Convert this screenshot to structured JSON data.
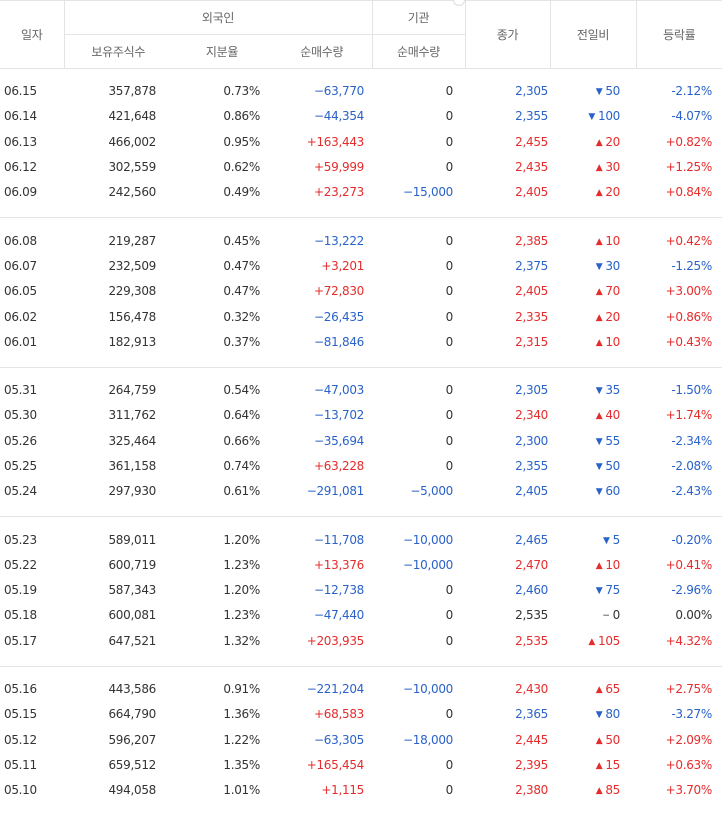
{
  "header": {
    "date": "일자",
    "foreign": "외국인",
    "institution": "기관",
    "close": "종가",
    "change": "전일비",
    "rate": "등락률",
    "holdings": "보유주식수",
    "share": "지분율",
    "foreign_net": "순매수량",
    "inst_net": "순매수량"
  },
  "groups": [
    [
      {
        "date": "06.15",
        "holdings": "357,878",
        "share": "0.73%",
        "foreign_net": "−63,770",
        "fdir": "down",
        "inst_net": "0",
        "idir": "flat",
        "close": "2,305",
        "cdir": "down",
        "change": "50",
        "chdir": "down",
        "rate": "-2.12%",
        "rdir": "down"
      },
      {
        "date": "06.14",
        "holdings": "421,648",
        "share": "0.86%",
        "foreign_net": "−44,354",
        "fdir": "down",
        "inst_net": "0",
        "idir": "flat",
        "close": "2,355",
        "cdir": "down",
        "change": "100",
        "chdir": "down",
        "rate": "-4.07%",
        "rdir": "down"
      },
      {
        "date": "06.13",
        "holdings": "466,002",
        "share": "0.95%",
        "foreign_net": "+163,443",
        "fdir": "up",
        "inst_net": "0",
        "idir": "flat",
        "close": "2,455",
        "cdir": "up",
        "change": "20",
        "chdir": "up",
        "rate": "+0.82%",
        "rdir": "up"
      },
      {
        "date": "06.12",
        "holdings": "302,559",
        "share": "0.62%",
        "foreign_net": "+59,999",
        "fdir": "up",
        "inst_net": "0",
        "idir": "flat",
        "close": "2,435",
        "cdir": "up",
        "change": "30",
        "chdir": "up",
        "rate": "+1.25%",
        "rdir": "up"
      },
      {
        "date": "06.09",
        "holdings": "242,560",
        "share": "0.49%",
        "foreign_net": "+23,273",
        "fdir": "up",
        "inst_net": "−15,000",
        "idir": "down",
        "close": "2,405",
        "cdir": "up",
        "change": "20",
        "chdir": "up",
        "rate": "+0.84%",
        "rdir": "up"
      }
    ],
    [
      {
        "date": "06.08",
        "holdings": "219,287",
        "share": "0.45%",
        "foreign_net": "−13,222",
        "fdir": "down",
        "inst_net": "0",
        "idir": "flat",
        "close": "2,385",
        "cdir": "up",
        "change": "10",
        "chdir": "up",
        "rate": "+0.42%",
        "rdir": "up"
      },
      {
        "date": "06.07",
        "holdings": "232,509",
        "share": "0.47%",
        "foreign_net": "+3,201",
        "fdir": "up",
        "inst_net": "0",
        "idir": "flat",
        "close": "2,375",
        "cdir": "down",
        "change": "30",
        "chdir": "down",
        "rate": "-1.25%",
        "rdir": "down"
      },
      {
        "date": "06.05",
        "holdings": "229,308",
        "share": "0.47%",
        "foreign_net": "+72,830",
        "fdir": "up",
        "inst_net": "0",
        "idir": "flat",
        "close": "2,405",
        "cdir": "up",
        "change": "70",
        "chdir": "up",
        "rate": "+3.00%",
        "rdir": "up"
      },
      {
        "date": "06.02",
        "holdings": "156,478",
        "share": "0.32%",
        "foreign_net": "−26,435",
        "fdir": "down",
        "inst_net": "0",
        "idir": "flat",
        "close": "2,335",
        "cdir": "up",
        "change": "20",
        "chdir": "up",
        "rate": "+0.86%",
        "rdir": "up"
      },
      {
        "date": "06.01",
        "holdings": "182,913",
        "share": "0.37%",
        "foreign_net": "−81,846",
        "fdir": "down",
        "inst_net": "0",
        "idir": "flat",
        "close": "2,315",
        "cdir": "up",
        "change": "10",
        "chdir": "up",
        "rate": "+0.43%",
        "rdir": "up"
      }
    ],
    [
      {
        "date": "05.31",
        "holdings": "264,759",
        "share": "0.54%",
        "foreign_net": "−47,003",
        "fdir": "down",
        "inst_net": "0",
        "idir": "flat",
        "close": "2,305",
        "cdir": "down",
        "change": "35",
        "chdir": "down",
        "rate": "-1.50%",
        "rdir": "down"
      },
      {
        "date": "05.30",
        "holdings": "311,762",
        "share": "0.64%",
        "foreign_net": "−13,702",
        "fdir": "down",
        "inst_net": "0",
        "idir": "flat",
        "close": "2,340",
        "cdir": "up",
        "change": "40",
        "chdir": "up",
        "rate": "+1.74%",
        "rdir": "up"
      },
      {
        "date": "05.26",
        "holdings": "325,464",
        "share": "0.66%",
        "foreign_net": "−35,694",
        "fdir": "down",
        "inst_net": "0",
        "idir": "flat",
        "close": "2,300",
        "cdir": "down",
        "change": "55",
        "chdir": "down",
        "rate": "-2.34%",
        "rdir": "down"
      },
      {
        "date": "05.25",
        "holdings": "361,158",
        "share": "0.74%",
        "foreign_net": "+63,228",
        "fdir": "up",
        "inst_net": "0",
        "idir": "flat",
        "close": "2,355",
        "cdir": "down",
        "change": "50",
        "chdir": "down",
        "rate": "-2.08%",
        "rdir": "down"
      },
      {
        "date": "05.24",
        "holdings": "297,930",
        "share": "0.61%",
        "foreign_net": "−291,081",
        "fdir": "down",
        "inst_net": "−5,000",
        "idir": "down",
        "close": "2,405",
        "cdir": "down",
        "change": "60",
        "chdir": "down",
        "rate": "-2.43%",
        "rdir": "down"
      }
    ],
    [
      {
        "date": "05.23",
        "holdings": "589,011",
        "share": "1.20%",
        "foreign_net": "−11,708",
        "fdir": "down",
        "inst_net": "−10,000",
        "idir": "down",
        "close": "2,465",
        "cdir": "down",
        "change": "5",
        "chdir": "down",
        "rate": "-0.20%",
        "rdir": "down"
      },
      {
        "date": "05.22",
        "holdings": "600,719",
        "share": "1.23%",
        "foreign_net": "+13,376",
        "fdir": "up",
        "inst_net": "−10,000",
        "idir": "down",
        "close": "2,470",
        "cdir": "up",
        "change": "10",
        "chdir": "up",
        "rate": "+0.41%",
        "rdir": "up"
      },
      {
        "date": "05.19",
        "holdings": "587,343",
        "share": "1.20%",
        "foreign_net": "−12,738",
        "fdir": "down",
        "inst_net": "0",
        "idir": "flat",
        "close": "2,460",
        "cdir": "down",
        "change": "75",
        "chdir": "down",
        "rate": "-2.96%",
        "rdir": "down"
      },
      {
        "date": "05.18",
        "holdings": "600,081",
        "share": "1.23%",
        "foreign_net": "−47,440",
        "fdir": "down",
        "inst_net": "0",
        "idir": "flat",
        "close": "2,535",
        "cdir": "flat",
        "change": "0",
        "chdir": "flat",
        "rate": "0.00%",
        "rdir": "flat"
      },
      {
        "date": "05.17",
        "holdings": "647,521",
        "share": "1.32%",
        "foreign_net": "+203,935",
        "fdir": "up",
        "inst_net": "0",
        "idir": "flat",
        "close": "2,535",
        "cdir": "up",
        "change": "105",
        "chdir": "up",
        "rate": "+4.32%",
        "rdir": "up"
      }
    ],
    [
      {
        "date": "05.16",
        "holdings": "443,586",
        "share": "0.91%",
        "foreign_net": "−221,204",
        "fdir": "down",
        "inst_net": "−10,000",
        "idir": "down",
        "close": "2,430",
        "cdir": "up",
        "change": "65",
        "chdir": "up",
        "rate": "+2.75%",
        "rdir": "up"
      },
      {
        "date": "05.15",
        "holdings": "664,790",
        "share": "1.36%",
        "foreign_net": "+68,583",
        "fdir": "up",
        "inst_net": "0",
        "idir": "flat",
        "close": "2,365",
        "cdir": "down",
        "change": "80",
        "chdir": "down",
        "rate": "-3.27%",
        "rdir": "down"
      },
      {
        "date": "05.12",
        "holdings": "596,207",
        "share": "1.22%",
        "foreign_net": "−63,305",
        "fdir": "down",
        "inst_net": "−18,000",
        "idir": "down",
        "close": "2,445",
        "cdir": "up",
        "change": "50",
        "chdir": "up",
        "rate": "+2.09%",
        "rdir": "up"
      },
      {
        "date": "05.11",
        "holdings": "659,512",
        "share": "1.35%",
        "foreign_net": "+165,454",
        "fdir": "up",
        "inst_net": "0",
        "idir": "flat",
        "close": "2,395",
        "cdir": "up",
        "change": "15",
        "chdir": "up",
        "rate": "+0.63%",
        "rdir": "up"
      },
      {
        "date": "05.10",
        "holdings": "494,058",
        "share": "1.01%",
        "foreign_net": "+1,115",
        "fdir": "up",
        "inst_net": "0",
        "idir": "flat",
        "close": "2,380",
        "cdir": "up",
        "change": "85",
        "chdir": "up",
        "rate": "+3.70%",
        "rdir": "up"
      }
    ]
  ],
  "colors": {
    "up": "#e52c2c",
    "down": "#2a62c9",
    "flat": "#333333"
  },
  "icons": {
    "up": "triangle-up-icon",
    "down": "triangle-down-icon",
    "flat": "dash-icon"
  }
}
